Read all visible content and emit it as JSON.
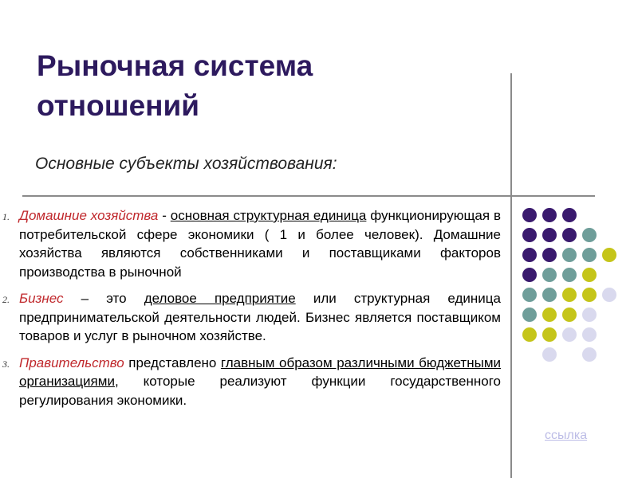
{
  "slide": {
    "title_line1": "Рыночная система",
    "title_line2": "отношений",
    "subtitle": "Основные субъекты хозяйствования:"
  },
  "items": [
    {
      "num": "1.",
      "term": "Домашние хозяйства",
      "dash": " - ",
      "underlined": "основная структурная единица",
      "rest": " функционирующая в потребительской сфере экономики ( 1 и более человек). Домашние хозяйства являются собственниками и поставщиками факторов производства в рыночной"
    },
    {
      "num": "2.",
      "term": "Бизнес ",
      "dash": "– это ",
      "underlined": "деловое предприятие",
      "rest": " или структурная единица предпринимательской деятельности людей. Бизнес является поставщиком товаров и услуг в рыночном хозяйстве."
    },
    {
      "num": "3.",
      "term": "Правительство",
      "mid": " представлено ",
      "underlined": "главным образом различными бюджетными организациями",
      "rest": ", которые реализуют функции государственного регулирования экономики."
    }
  ],
  "link_text": "ссылка",
  "colors": {
    "title": "#2d1a5e",
    "term": "#c0282c",
    "dot_purple": "#3a1a6e",
    "dot_teal": "#6f9e9a",
    "dot_yellow": "#c5c51a",
    "dot_lavender": "#d9d9ee",
    "link": "#bcbce6"
  },
  "dot_grid": [
    [
      "purple",
      "purple",
      "purple",
      "",
      ""
    ],
    [
      "purple",
      "purple",
      "purple",
      "teal",
      ""
    ],
    [
      "purple",
      "purple",
      "teal",
      "teal",
      "yellow"
    ],
    [
      "purple",
      "teal",
      "teal",
      "yellow",
      ""
    ],
    [
      "teal",
      "teal",
      "yellow",
      "yellow",
      "lavender"
    ],
    [
      "teal",
      "yellow",
      "yellow",
      "lavender",
      ""
    ],
    [
      "yellow",
      "yellow",
      "lavender",
      "lavender",
      ""
    ],
    [
      "",
      "lavender",
      "",
      "lavender",
      ""
    ]
  ]
}
